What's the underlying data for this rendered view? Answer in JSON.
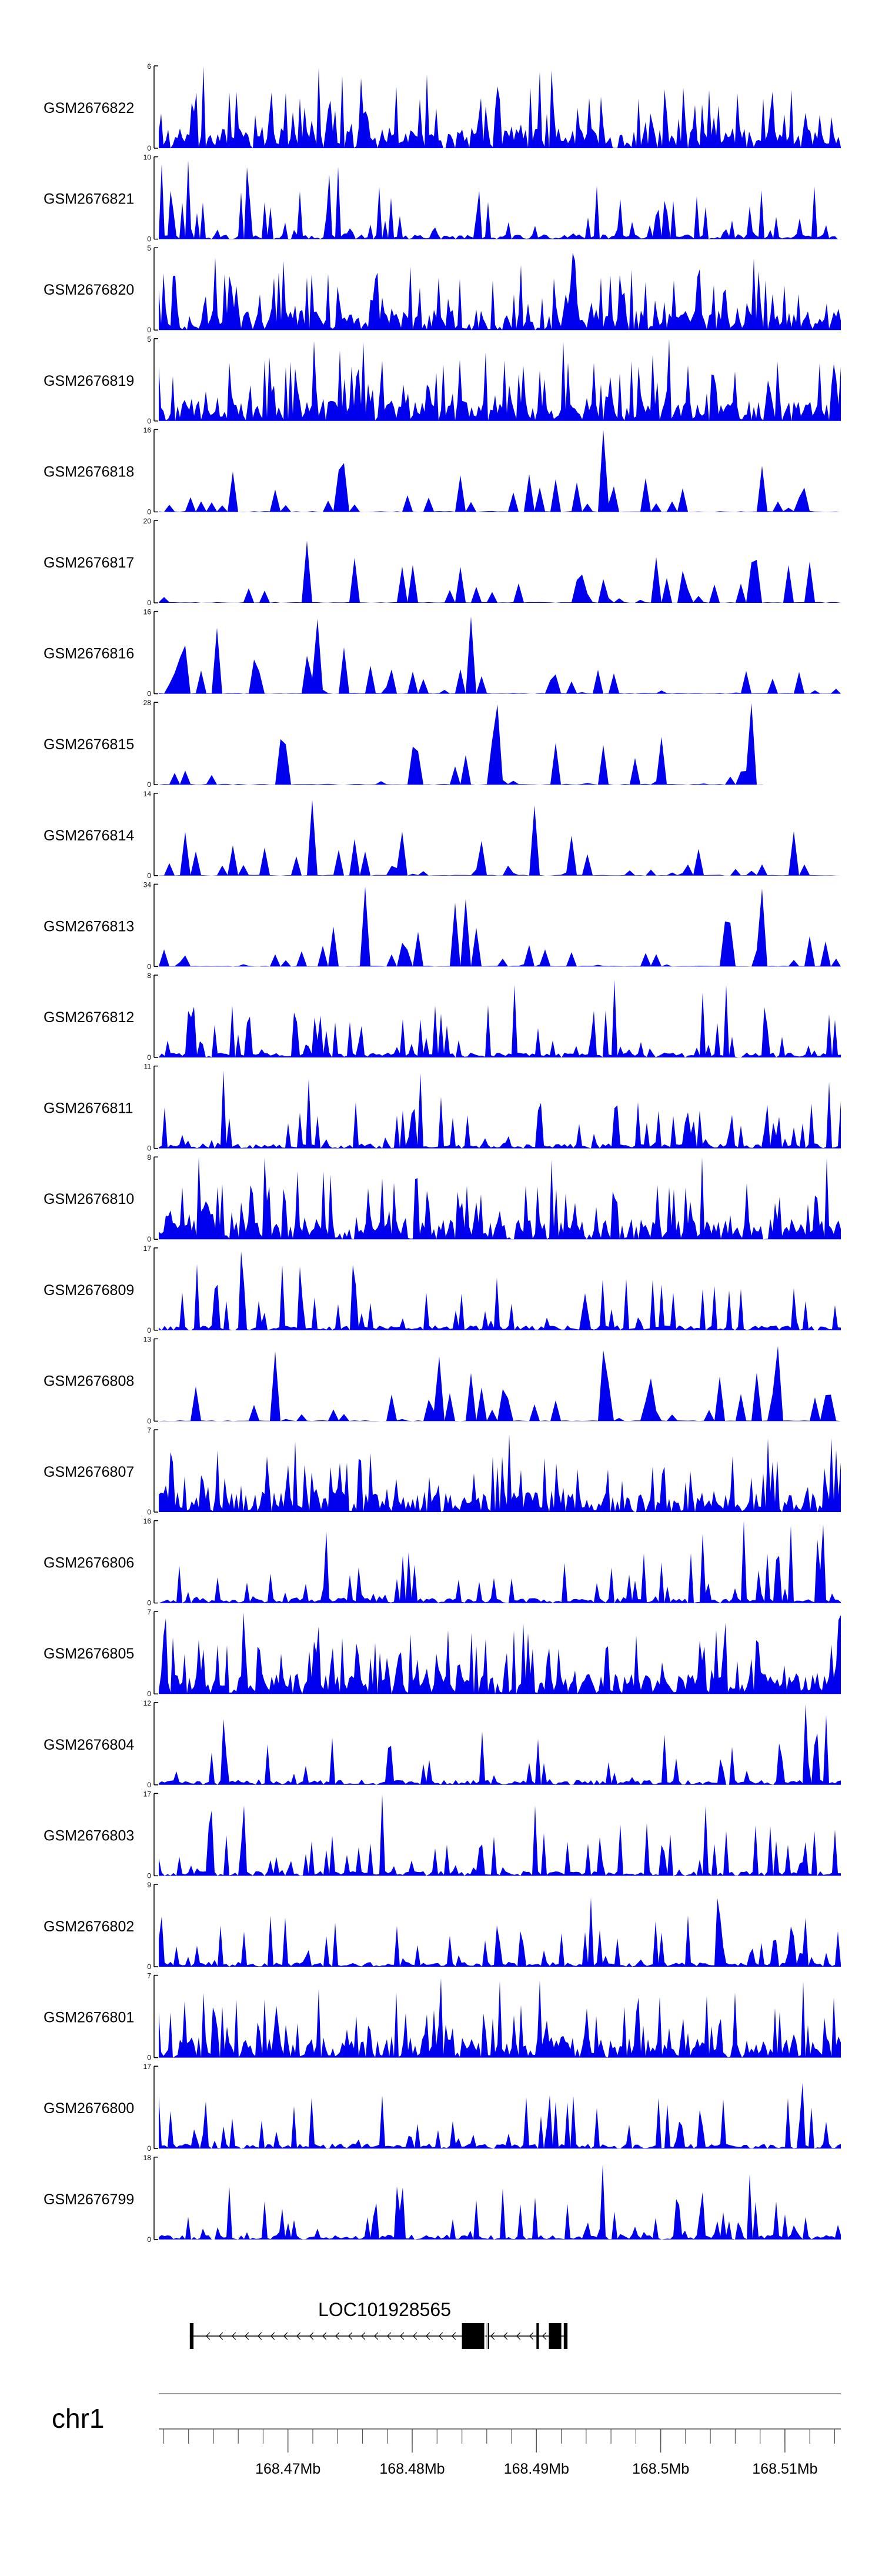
{
  "chart_data": {
    "type": "area",
    "title": "",
    "xlabel": "",
    "xlim": [
      168.4596,
      168.5145
    ],
    "signal_color": "#0000ee",
    "tracks": [
      {
        "name": "GSM2676822",
        "ymax": "6",
        "ymin": "0",
        "seed": 101,
        "style": "dense"
      },
      {
        "name": "GSM2676821",
        "ymax": "10",
        "ymin": "0",
        "seed": 202,
        "style": "medium"
      },
      {
        "name": "GSM2676820",
        "ymax": "5",
        "ymin": "0",
        "seed": 303,
        "style": "dense"
      },
      {
        "name": "GSM2676819",
        "ymax": "5",
        "ymin": "0",
        "seed": 404,
        "style": "dense"
      },
      {
        "name": "GSM2676818",
        "ymax": "16",
        "ymin": "0",
        "seed": 505,
        "style": "sparse"
      },
      {
        "name": "GSM2676817",
        "ymax": "20",
        "ymin": "0",
        "seed": 606,
        "style": "sparse"
      },
      {
        "name": "GSM2676816",
        "ymax": "16",
        "ymin": "0",
        "seed": 707,
        "style": "sparse"
      },
      {
        "name": "GSM2676815",
        "ymax": "28",
        "ymin": "0",
        "seed": 808,
        "style": "sparse",
        "end": 168.5083
      },
      {
        "name": "GSM2676814",
        "ymax": "14",
        "ymin": "0",
        "seed": 909,
        "style": "sparse"
      },
      {
        "name": "GSM2676813",
        "ymax": "34",
        "ymin": "0",
        "seed": 1010,
        "style": "sparse"
      },
      {
        "name": "GSM2676812",
        "ymax": "8",
        "ymin": "0",
        "seed": 1111,
        "style": "medium"
      },
      {
        "name": "GSM2676811",
        "ymax": "11",
        "ymin": "0",
        "seed": 1212,
        "style": "medium"
      },
      {
        "name": "GSM2676810",
        "ymax": "8",
        "ymin": "0",
        "seed": 1313,
        "style": "dense"
      },
      {
        "name": "GSM2676809",
        "ymax": "17",
        "ymin": "0",
        "seed": 1414,
        "style": "medium"
      },
      {
        "name": "GSM2676808",
        "ymax": "13",
        "ymin": "0",
        "seed": 1515,
        "style": "sparse"
      },
      {
        "name": "GSM2676807",
        "ymax": "7",
        "ymin": "0",
        "seed": 1616,
        "style": "dense"
      },
      {
        "name": "GSM2676806",
        "ymax": "16",
        "ymin": "0",
        "seed": 1717,
        "style": "medium"
      },
      {
        "name": "GSM2676805",
        "ymax": "7",
        "ymin": "0",
        "seed": 1818,
        "style": "dense"
      },
      {
        "name": "GSM2676804",
        "ymax": "12",
        "ymin": "0",
        "seed": 1919,
        "style": "medium"
      },
      {
        "name": "GSM2676803",
        "ymax": "17",
        "ymin": "0",
        "seed": 2020,
        "style": "medium"
      },
      {
        "name": "GSM2676802",
        "ymax": "9",
        "ymin": "0",
        "seed": 2121,
        "style": "medium"
      },
      {
        "name": "GSM2676801",
        "ymax": "7",
        "ymin": "0",
        "seed": 2222,
        "style": "dense"
      },
      {
        "name": "GSM2676800",
        "ymax": "17",
        "ymin": "0",
        "seed": 2323,
        "style": "medium"
      },
      {
        "name": "GSM2676799",
        "ymax": "18",
        "ymin": "0",
        "seed": 2424,
        "style": "medium"
      }
    ],
    "gene": {
      "name": "LOC101928565",
      "strand": "-",
      "start": 168.4621,
      "end": 168.4925,
      "exons": [
        [
          168.4621,
          168.4624
        ],
        [
          168.484,
          168.4858
        ],
        [
          168.486,
          168.4862
        ],
        [
          168.49,
          168.4902
        ],
        [
          168.491,
          168.492
        ],
        [
          168.4922,
          168.4925
        ]
      ]
    },
    "axis": {
      "chromosome": "chr1",
      "tick_labels": [
        "168.47Mb",
        "168.48Mb",
        "168.49Mb",
        "168.5Mb",
        "168.51Mb"
      ],
      "tick_values": [
        168.47,
        168.48,
        168.49,
        168.5,
        168.51
      ],
      "minor_tick_step": 0.002
    }
  }
}
